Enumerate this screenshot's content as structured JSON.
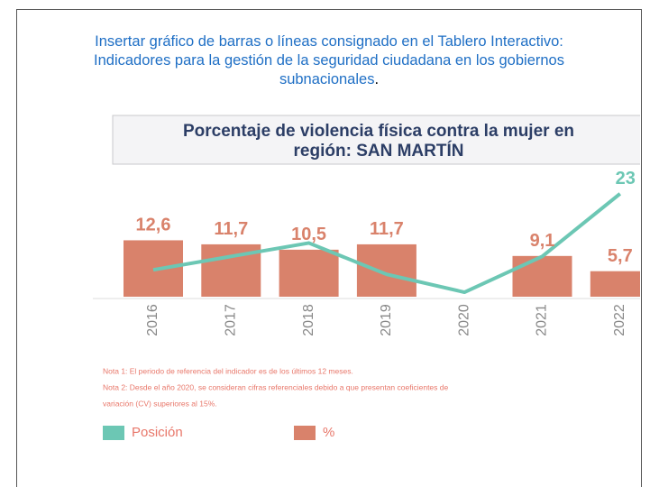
{
  "intro": {
    "lines": [
      "Insertar gráfico de barras o líneas consignado en el Tablero Interactivo:",
      "Indicadores para la gestión de la seguridad ciudadana en los gobiernos",
      "subnacionales"
    ],
    "end": "."
  },
  "chart_data": {
    "type": "bar-line",
    "title": [
      "Porcentaje de violencia física contra la mujer en",
      "región: SAN MARTÍN"
    ],
    "categories": [
      "2016",
      "2017",
      "2018",
      "2019",
      "2020",
      "2021",
      "2022"
    ],
    "ylim": [
      0,
      28
    ],
    "series": [
      {
        "name": "%",
        "type": "bar",
        "color": "#d9826b",
        "values": [
          12.6,
          11.7,
          10.5,
          11.7,
          null,
          9.1,
          5.7
        ],
        "value_labels": [
          "12,6",
          "11,7",
          "10,5",
          "11,7",
          null,
          "9,1",
          "5,7"
        ]
      },
      {
        "name": "Posición",
        "type": "line",
        "color": "#6cc7b4",
        "values": [
          6,
          9,
          12,
          5,
          1,
          9,
          23
        ],
        "value_labels": [
          null,
          null,
          null,
          null,
          null,
          null,
          "23"
        ]
      }
    ],
    "notes": [
      "Nota 1: El periodo de referencia del indicador es de los últimos 12 meses.",
      "Nota 2: Desde el año 2020, se consideran cifras referenciales debido a que presentan coeficientes de",
      "variación (CV) superiores al 15%."
    ],
    "legend_order": [
      1,
      0
    ]
  }
}
